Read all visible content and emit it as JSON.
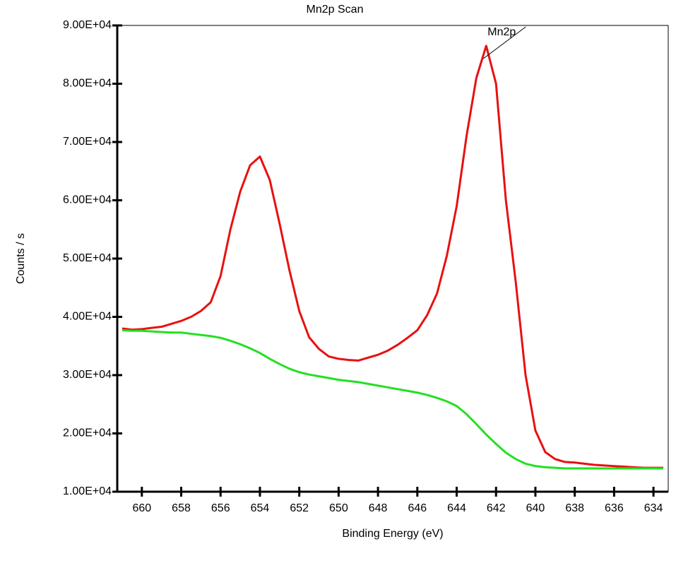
{
  "chart_data": {
    "type": "line",
    "title": "Mn2p Scan",
    "x_label": "Binding Energy (eV)",
    "y_label": "Counts / s",
    "x": [
      661,
      660.5,
      660,
      659.5,
      659,
      658.5,
      658,
      657.5,
      657,
      656.5,
      656,
      655.5,
      655,
      654.5,
      654,
      653.5,
      653,
      652.5,
      652,
      651.5,
      651,
      650.5,
      650,
      649.5,
      649,
      648.5,
      648,
      647.5,
      647,
      646.5,
      646,
      645.5,
      645,
      644.5,
      644,
      643.5,
      643,
      642.5,
      642,
      641.5,
      641,
      640.5,
      640,
      639.5,
      639,
      638.5,
      638,
      637.5,
      637,
      636.5,
      636,
      635.5,
      635,
      634.5,
      634,
      633.5
    ],
    "series": [
      {
        "color": "#e81010",
        "values": [
          38000,
          37800,
          37900,
          38100,
          38300,
          38800,
          39300,
          40000,
          41000,
          42500,
          47000,
          55000,
          61500,
          66000,
          67500,
          63500,
          56000,
          48000,
          41000,
          36500,
          34500,
          33200,
          32800,
          32600,
          32500,
          33000,
          33500,
          34200,
          35200,
          36400,
          37700,
          40300,
          44000,
          50500,
          59000,
          71000,
          81000,
          86500,
          80000,
          60000,
          46000,
          30000,
          20500,
          16800,
          15600,
          15100,
          15000,
          14800,
          14600,
          14500,
          14400,
          14300,
          14200,
          14100,
          14100,
          14100
        ]
      },
      {
        "color": "#22e022",
        "values": [
          37700,
          37600,
          37600,
          37500,
          37400,
          37300,
          37300,
          37100,
          36900,
          36700,
          36400,
          35900,
          35300,
          34600,
          33800,
          32800,
          31900,
          31100,
          30500,
          30100,
          29800,
          29500,
          29200,
          29000,
          28800,
          28500,
          28200,
          27900,
          27600,
          27300,
          27000,
          26600,
          26100,
          25500,
          24700,
          23300,
          21600,
          19800,
          18200,
          16700,
          15600,
          14800,
          14400,
          14200,
          14100,
          14000,
          14000,
          14000,
          14000,
          14000,
          14000,
          14000,
          14000,
          14000,
          14000,
          14000
        ]
      }
    ],
    "annotations": [
      {
        "text": "Mn2p"
      }
    ],
    "xlim": [
      661.25,
      633.25
    ],
    "xticks": [
      660,
      658,
      656,
      654,
      652,
      650,
      648,
      646,
      644,
      642,
      640,
      638,
      636,
      634
    ],
    "ylim": [
      10000,
      90000
    ],
    "yticks": [
      {
        "value": 10000,
        "label": "1.00E+04"
      },
      {
        "value": 20000,
        "label": "2.00E+04"
      },
      {
        "value": 30000,
        "label": "3.00E+04"
      },
      {
        "value": 40000,
        "label": "4.00E+04"
      },
      {
        "value": 50000,
        "label": "5.00E+04"
      },
      {
        "value": 60000,
        "label": "6.00E+04"
      },
      {
        "value": 70000,
        "label": "7.00E+04"
      },
      {
        "value": 80000,
        "label": "8.00E+04"
      },
      {
        "value": 90000,
        "label": "9.00E+04"
      }
    ],
    "grid": false
  }
}
